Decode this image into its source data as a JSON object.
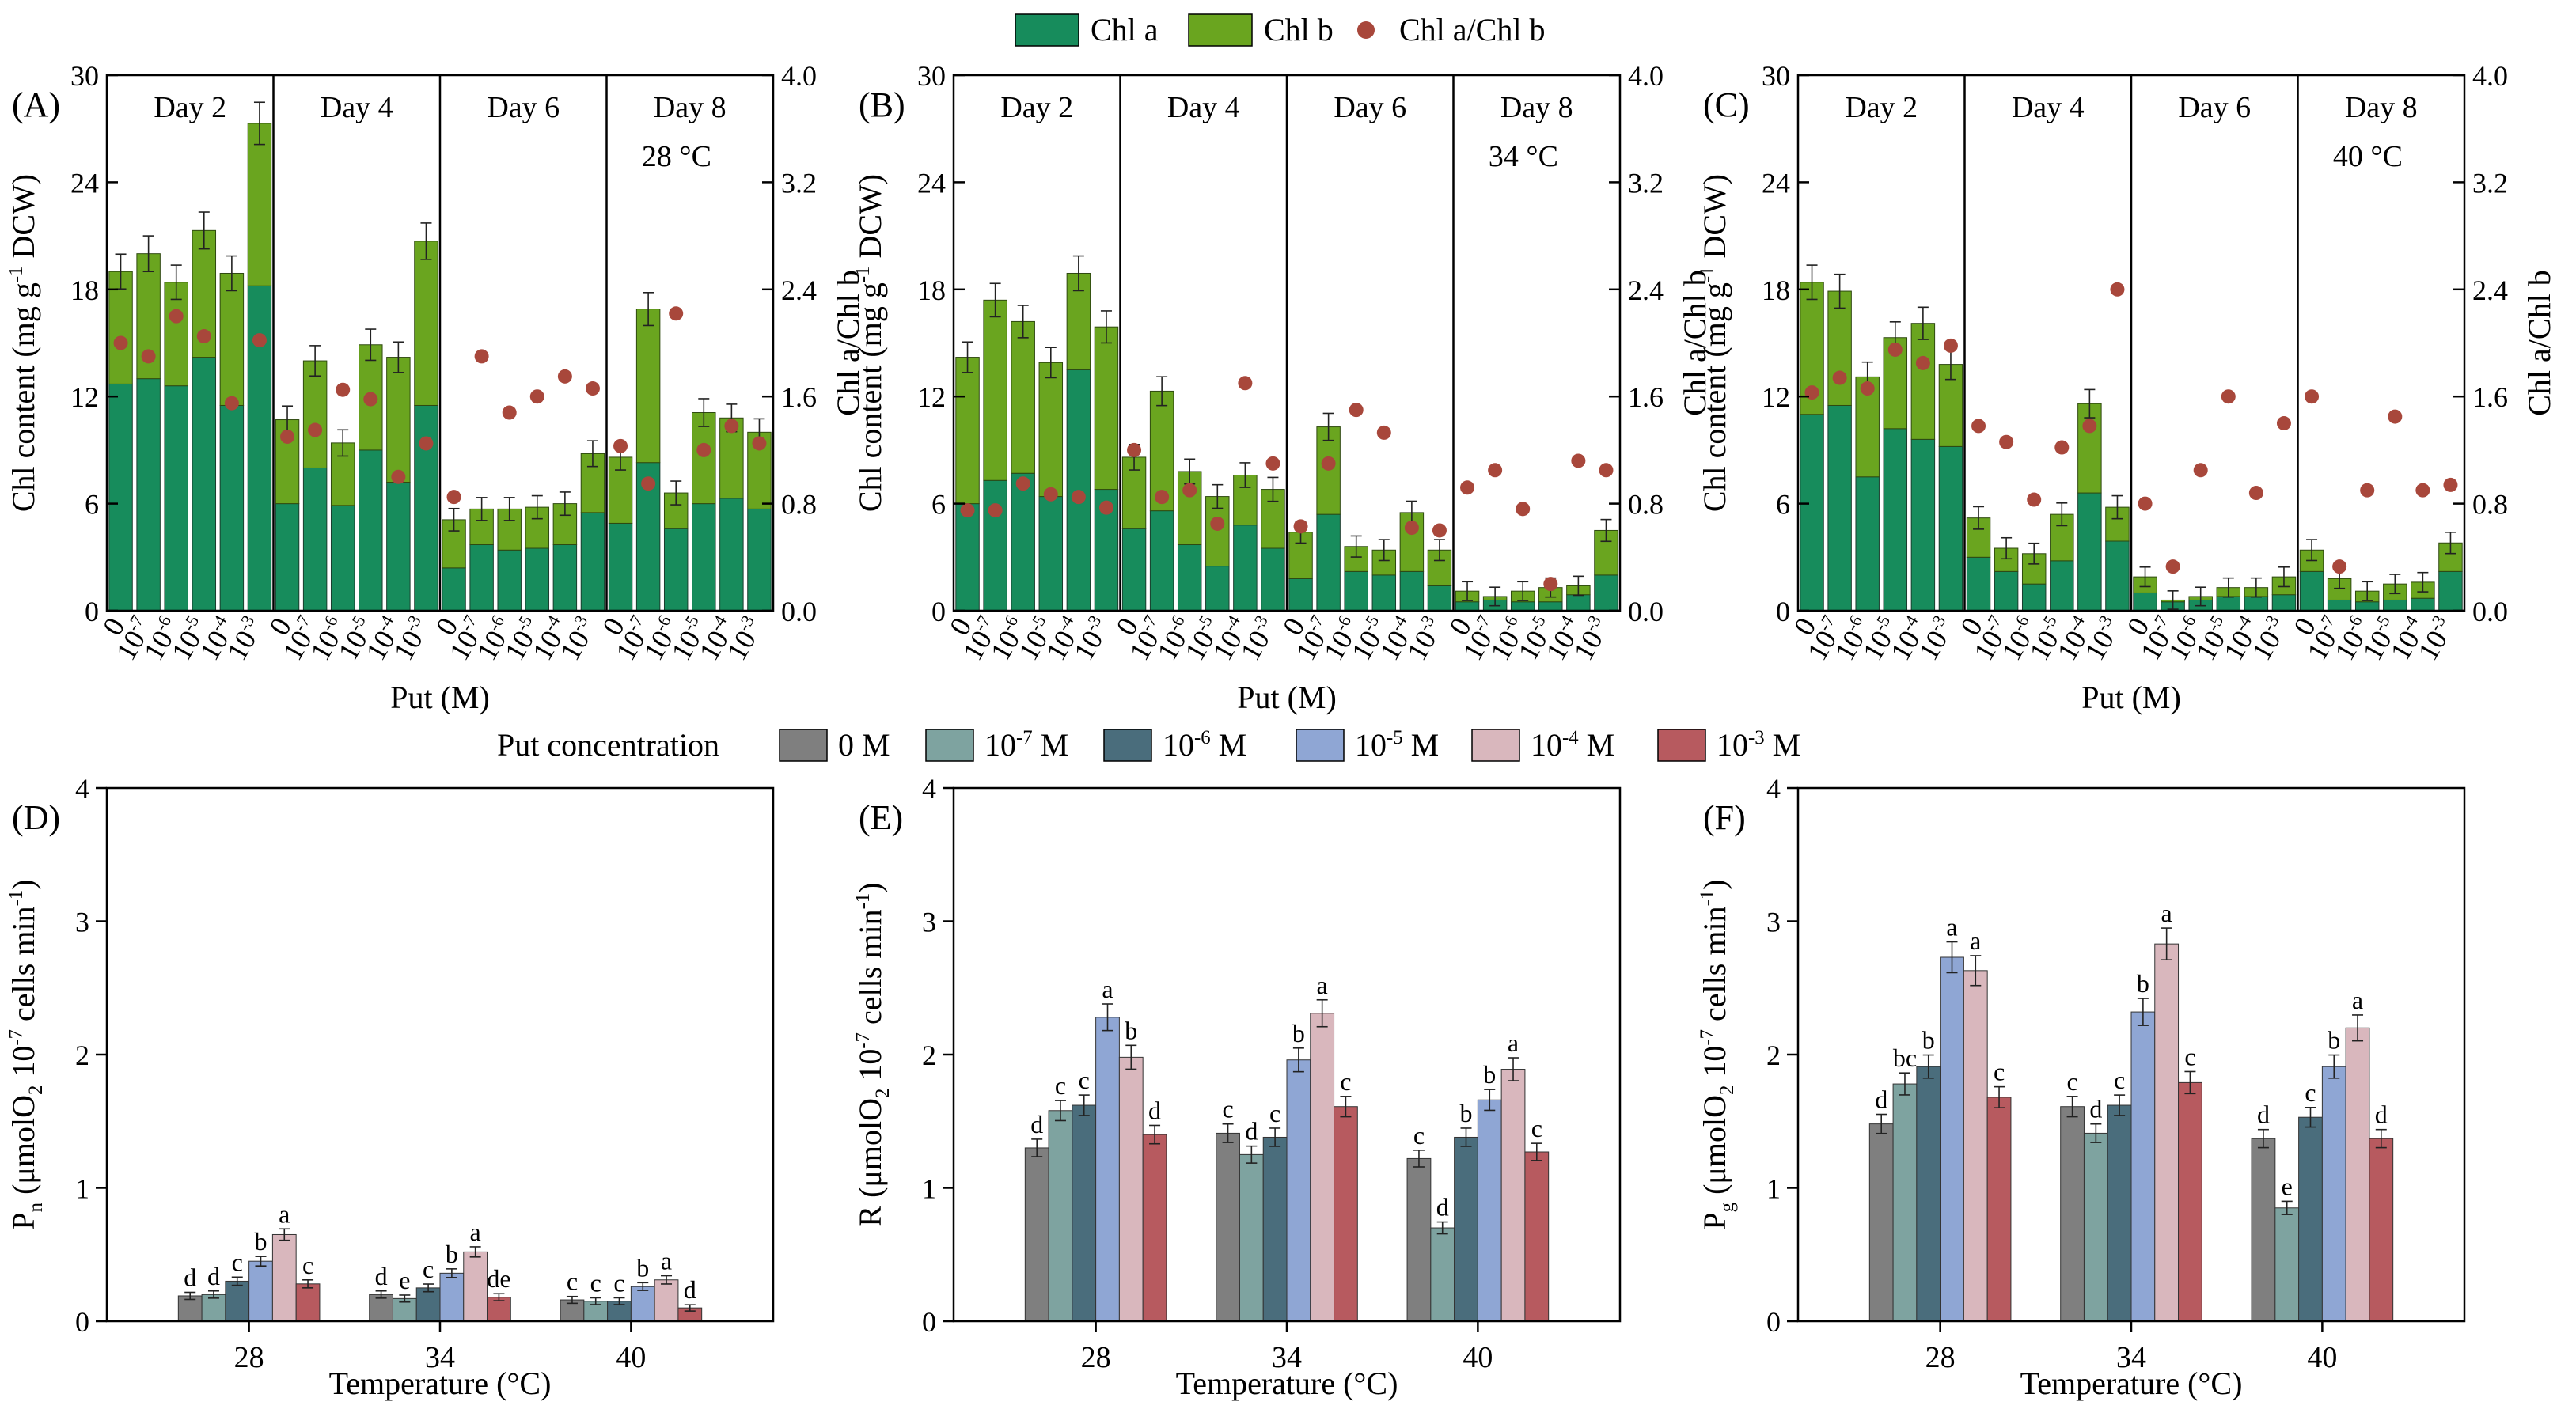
{
  "figure": {
    "top_legend": {
      "chl_a_label": "Chl a",
      "chl_b_label": "Chl b",
      "ratio_label": "Chl a/Chl b"
    },
    "bottom_legend": {
      "title": "Put concentration",
      "items": [
        "0 M",
        "10-7 M",
        "10-6 M",
        "10-5 M",
        "10-4 M",
        "10-3 M"
      ]
    },
    "colors": {
      "chl_a": "#178c5c",
      "chl_b": "#6aa51f",
      "ratio": "#a8473b",
      "conc": [
        "#7f7f7f",
        "#7ea3a0",
        "#4a6d7c",
        "#8fa6d4",
        "#d9b7bd",
        "#b75a5f"
      ]
    }
  },
  "chart_data": [
    {
      "panel": "(A)",
      "type": "stacked-bar+scatter",
      "temp_label": "28 °C",
      "ylabel": "Chl content (mg g-1 DCW)",
      "y2label": "Chl a/Chl b",
      "xlabel": "Put (M)",
      "ylim": [
        0,
        30
      ],
      "y2lim": [
        0,
        4.0
      ],
      "yticks": [
        "0",
        "6",
        "12",
        "18",
        "24",
        "30"
      ],
      "y2ticks": [
        "0.0",
        "0.8",
        "1.6",
        "2.4",
        "3.2",
        "4.0"
      ],
      "concentrations": [
        "0",
        "10-7",
        "10-6",
        "10-5",
        "10-4",
        "10-3"
      ],
      "days": [
        {
          "label": "Day 2",
          "chl_a": [
            12.7,
            13.0,
            12.6,
            14.2,
            11.5,
            18.2
          ],
          "total": [
            19.0,
            20.0,
            18.4,
            21.3,
            18.9,
            27.3
          ],
          "ratio": [
            2.0,
            1.9,
            2.2,
            2.05,
            1.55,
            2.02
          ]
        },
        {
          "label": "Day 4",
          "chl_a": [
            6.0,
            8.0,
            5.9,
            9.0,
            7.2,
            11.5
          ],
          "total": [
            10.7,
            14.0,
            9.4,
            14.9,
            14.2,
            20.7
          ],
          "ratio": [
            1.3,
            1.35,
            1.65,
            1.58,
            1.0,
            1.25
          ]
        },
        {
          "label": "Day 6",
          "chl_a": [
            2.4,
            3.7,
            3.4,
            3.5,
            3.7,
            5.5
          ],
          "total": [
            5.1,
            5.7,
            5.7,
            5.8,
            6.0,
            8.8
          ],
          "ratio": [
            0.85,
            1.9,
            1.48,
            1.6,
            1.75,
            1.66
          ]
        },
        {
          "label": "Day 8",
          "chl_a": [
            4.9,
            8.3,
            4.6,
            6.0,
            6.3,
            5.7
          ],
          "total": [
            8.6,
            16.9,
            6.6,
            11.1,
            10.8,
            10.0
          ],
          "ratio": [
            1.23,
            0.95,
            2.22,
            1.2,
            1.38,
            1.25
          ]
        }
      ]
    },
    {
      "panel": "(B)",
      "type": "stacked-bar+scatter",
      "temp_label": "34 °C",
      "ylabel": "Chl content (mg g-1 DCW)",
      "y2label": "Chl a/Chl b",
      "xlabel": "Put (M)",
      "ylim": [
        0,
        30
      ],
      "y2lim": [
        0,
        4.0
      ],
      "yticks": [
        "0",
        "6",
        "12",
        "18",
        "24",
        "30"
      ],
      "y2ticks": [
        "0.0",
        "0.8",
        "1.6",
        "2.4",
        "3.2",
        "4.0"
      ],
      "concentrations": [
        "0",
        "10-7",
        "10-6",
        "10-5",
        "10-4",
        "10-3"
      ],
      "days": [
        {
          "label": "Day 2",
          "chl_a": [
            6.0,
            7.3,
            7.7,
            6.4,
            13.5,
            6.8
          ],
          "total": [
            14.2,
            17.4,
            16.2,
            13.9,
            18.9,
            15.9
          ],
          "ratio": [
            0.75,
            0.75,
            0.95,
            0.87,
            0.85,
            0.77
          ]
        },
        {
          "label": "Day 4",
          "chl_a": [
            4.6,
            5.6,
            3.7,
            2.5,
            4.8,
            3.5
          ],
          "total": [
            8.6,
            12.3,
            7.8,
            6.4,
            7.6,
            6.8
          ],
          "ratio": [
            1.2,
            0.85,
            0.9,
            0.65,
            1.7,
            1.1
          ]
        },
        {
          "label": "Day 6",
          "chl_a": [
            1.8,
            5.4,
            2.2,
            2.0,
            2.2,
            1.4
          ],
          "total": [
            4.4,
            10.3,
            3.6,
            3.4,
            5.5,
            3.4
          ],
          "ratio": [
            0.63,
            1.1,
            1.5,
            1.33,
            0.62,
            0.6
          ]
        },
        {
          "label": "Day 8",
          "chl_a": [
            0.5,
            0.6,
            0.5,
            0.5,
            0.9,
            2.0
          ],
          "total": [
            1.1,
            0.8,
            1.1,
            1.3,
            1.4,
            4.5
          ],
          "ratio": [
            0.92,
            1.05,
            0.76,
            0.2,
            1.12,
            1.05
          ]
        }
      ]
    },
    {
      "panel": "(C)",
      "type": "stacked-bar+scatter",
      "temp_label": "40 °C",
      "ylabel": "Chl content (mg g-1 DCW)",
      "y2label": "Chl a/Chl b",
      "xlabel": "Put (M)",
      "ylim": [
        0,
        30
      ],
      "y2lim": [
        0,
        4.0
      ],
      "yticks": [
        "0",
        "6",
        "12",
        "18",
        "24",
        "30"
      ],
      "y2ticks": [
        "0.0",
        "0.8",
        "1.6",
        "2.4",
        "3.2",
        "4.0"
      ],
      "concentrations": [
        "0",
        "10-7",
        "10-6",
        "10-5",
        "10-4",
        "10-3"
      ],
      "days": [
        {
          "label": "Day 2",
          "chl_a": [
            11.0,
            11.5,
            7.5,
            10.2,
            9.6,
            9.2
          ],
          "total": [
            18.4,
            17.9,
            13.1,
            15.3,
            16.1,
            13.8
          ],
          "ratio": [
            1.63,
            1.74,
            1.66,
            1.95,
            1.85,
            1.98
          ]
        },
        {
          "label": "Day 4",
          "chl_a": [
            3.0,
            2.2,
            1.5,
            2.8,
            6.6,
            3.9
          ],
          "total": [
            5.2,
            3.5,
            3.2,
            5.4,
            11.6,
            5.8
          ],
          "ratio": [
            1.38,
            1.26,
            0.83,
            1.22,
            1.38,
            2.4
          ]
        },
        {
          "label": "Day 6",
          "chl_a": [
            1.0,
            0.5,
            0.6,
            0.8,
            0.8,
            0.9
          ],
          "total": [
            1.9,
            0.6,
            0.8,
            1.3,
            1.3,
            1.9
          ],
          "ratio": [
            0.8,
            0.33,
            1.05,
            1.6,
            0.88,
            1.4
          ]
        },
        {
          "label": "Day 8",
          "chl_a": [
            2.2,
            0.6,
            0.5,
            0.6,
            0.7,
            2.2
          ],
          "total": [
            3.4,
            1.8,
            1.1,
            1.5,
            1.6,
            3.8
          ],
          "ratio": [
            1.6,
            0.33,
            0.9,
            1.45,
            0.9,
            0.94
          ]
        }
      ]
    },
    {
      "panel": "(D)",
      "type": "bar",
      "ylabel": "Pn (μmolO2 10-7 cells min-1)",
      "xlabel": "Temperature (°C)",
      "ylim": [
        0,
        4
      ],
      "yticks": [
        "0",
        "1",
        "2",
        "3",
        "4"
      ],
      "categories": [
        "28",
        "34",
        "40"
      ],
      "series": [
        {
          "name": "0 M",
          "values": [
            0.19,
            0.2,
            0.16
          ],
          "letters": [
            "d",
            "d",
            "c"
          ]
        },
        {
          "name": "10-7 M",
          "values": [
            0.2,
            0.17,
            0.15
          ],
          "letters": [
            "d",
            "e",
            "c"
          ]
        },
        {
          "name": "10-6 M",
          "values": [
            0.3,
            0.25,
            0.15
          ],
          "letters": [
            "c",
            "c",
            "c"
          ]
        },
        {
          "name": "10-5 M",
          "values": [
            0.45,
            0.36,
            0.26
          ],
          "letters": [
            "b",
            "b",
            "b"
          ]
        },
        {
          "name": "10-4 M",
          "values": [
            0.65,
            0.52,
            0.31
          ],
          "letters": [
            "a",
            "a",
            "a"
          ]
        },
        {
          "name": "10-3 M",
          "values": [
            0.28,
            0.18,
            0.1
          ],
          "letters": [
            "c",
            "de",
            "d"
          ]
        }
      ]
    },
    {
      "panel": "(E)",
      "type": "bar",
      "ylabel": "R (μmolO2 10-7 cells min-1)",
      "xlabel": "Temperature (°C)",
      "ylim": [
        0,
        4
      ],
      "yticks": [
        "0",
        "1",
        "2",
        "3",
        "4"
      ],
      "categories": [
        "28",
        "34",
        "40"
      ],
      "series": [
        {
          "name": "0 M",
          "values": [
            1.3,
            1.41,
            1.22
          ],
          "letters": [
            "d",
            "c",
            "c"
          ]
        },
        {
          "name": "10-7 M",
          "values": [
            1.58,
            1.25,
            0.7
          ],
          "letters": [
            "c",
            "d",
            "d"
          ]
        },
        {
          "name": "10-6 M",
          "values": [
            1.62,
            1.38,
            1.38
          ],
          "letters": [
            "c",
            "c",
            "b"
          ]
        },
        {
          "name": "10-5 M",
          "values": [
            2.28,
            1.96,
            1.66
          ],
          "letters": [
            "a",
            "b",
            "b"
          ]
        },
        {
          "name": "10-4 M",
          "values": [
            1.98,
            2.31,
            1.89
          ],
          "letters": [
            "b",
            "a",
            "a"
          ]
        },
        {
          "name": "10-3 M",
          "values": [
            1.4,
            1.61,
            1.27
          ],
          "letters": [
            "d",
            "c",
            "c"
          ]
        }
      ]
    },
    {
      "panel": "(F)",
      "type": "bar",
      "ylabel": "Pg (μmolO2 10-7 cells min-1)",
      "xlabel": "Temperature (°C)",
      "ylim": [
        0,
        4
      ],
      "yticks": [
        "0",
        "1",
        "2",
        "3",
        "4"
      ],
      "categories": [
        "28",
        "34",
        "40"
      ],
      "series": [
        {
          "name": "0 M",
          "values": [
            1.48,
            1.61,
            1.37
          ],
          "letters": [
            "d",
            "c",
            "d"
          ]
        },
        {
          "name": "10-7 M",
          "values": [
            1.78,
            1.41,
            0.85
          ],
          "letters": [
            "bc",
            "d",
            "e"
          ]
        },
        {
          "name": "10-6 M",
          "values": [
            1.91,
            1.62,
            1.53
          ],
          "letters": [
            "b",
            "c",
            "c"
          ]
        },
        {
          "name": "10-5 M",
          "values": [
            2.73,
            2.32,
            1.91
          ],
          "letters": [
            "a",
            "b",
            "b"
          ]
        },
        {
          "name": "10-4 M",
          "values": [
            2.63,
            2.83,
            2.2
          ],
          "letters": [
            "a",
            "a",
            "a"
          ]
        },
        {
          "name": "10-3 M",
          "values": [
            1.68,
            1.79,
            1.37
          ],
          "letters": [
            "c",
            "c",
            "d"
          ]
        }
      ]
    }
  ]
}
